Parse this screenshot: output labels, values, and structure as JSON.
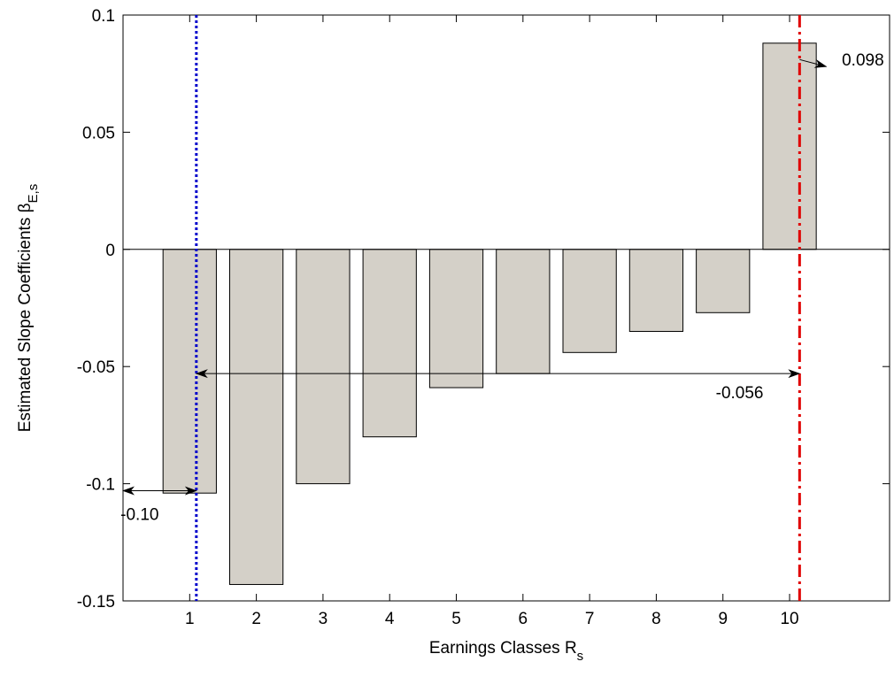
{
  "chart_data": {
    "type": "bar",
    "categories": [
      "1",
      "2",
      "3",
      "4",
      "5",
      "6",
      "7",
      "8",
      "9",
      "10"
    ],
    "values": [
      -0.104,
      -0.143,
      -0.1,
      -0.08,
      -0.059,
      -0.053,
      -0.044,
      -0.035,
      -0.027,
      0.088
    ],
    "xlim": [
      0,
      11.5
    ],
    "ylim": [
      -0.15,
      0.1
    ],
    "yticks": [
      -0.15,
      -0.1,
      -0.05,
      0,
      0.05,
      0.1
    ],
    "ytick_labels": [
      "-0.15",
      "-0.1",
      "-0.05",
      "0",
      "0.05",
      "0.1"
    ],
    "xlabel": {
      "main": "Earnings Classes R",
      "sub": "s"
    },
    "ylabel": {
      "main": "Estimated Slope Coefficients  β",
      "sub": "E,s"
    },
    "bar_color": "#d4d0c8",
    "grid": false,
    "reference_lines": [
      {
        "x": 1.1,
        "color": "#0000cc",
        "style": "dotted"
      },
      {
        "x": 10.15,
        "color": "#e00000",
        "style": "dash-dot"
      }
    ],
    "annotations": [
      {
        "text": "-0.10",
        "arrow": {
          "x1": 0,
          "x2": 1.1,
          "y": -0.103,
          "double": true
        },
        "label_x": 0.25,
        "label_y": -0.1155
      },
      {
        "text": "-0.056",
        "arrow": {
          "x1": 1.1,
          "x2": 10.15,
          "y": -0.053,
          "double": true
        },
        "label_x": 9.25,
        "label_y": -0.0635
      },
      {
        "text": "0.098",
        "arrow": {
          "x1": 10.15,
          "x2": 10.55,
          "y": 0.079,
          "double": false
        },
        "label_x": 11.1,
        "label_y": 0.0785
      }
    ]
  }
}
